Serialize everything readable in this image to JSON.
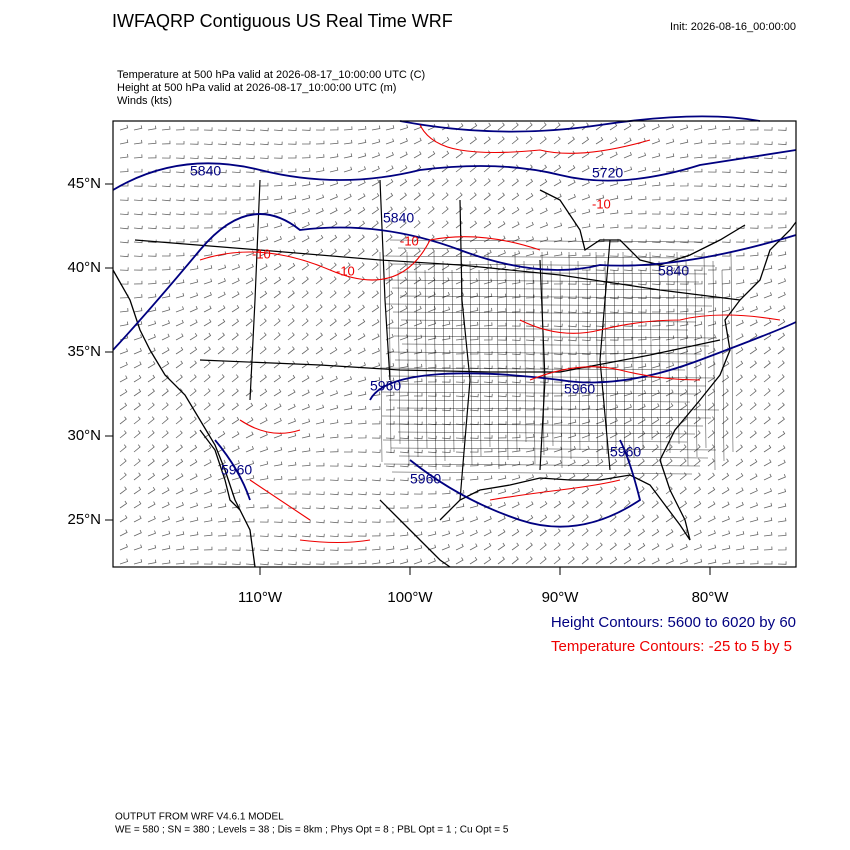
{
  "header": {
    "title": "IWFAQRP Contiguous US Real Time WRF",
    "init": "Init: 2026-08-16_00:00:00"
  },
  "subtitles": [
    "Temperature at 500 hPa valid at 2026-08-17_10:00:00 UTC   (C)",
    "Height at 500 hPa valid at 2026-08-17_10:00:00 UTC   (m)",
    "Winds   (kts)"
  ],
  "lat_labels": [
    "45°N",
    "40°N",
    "35°N",
    "30°N",
    "25°N"
  ],
  "lon_labels": [
    "110°W",
    "100°W",
    "90°W",
    "80°W"
  ],
  "height_contour_labels": [
    "5840",
    "5720",
    "5840",
    "5840",
    "5960",
    "5960",
    "5960",
    "5960",
    "5960"
  ],
  "temperature_contour_labels": [
    "-10",
    "-10",
    "-10",
    "-10"
  ],
  "legend": {
    "height": "Height Contours: 5600 to 6020 by 60",
    "temperature": "Temperature Contours: -25 to 5 by 5"
  },
  "footer": [
    "OUTPUT FROM WRF V4.6.1 MODEL",
    "WE = 580 ; SN = 380 ; Levels = 38 ; Dis = 8km ; Phys Opt = 8 ; PBL Opt = 1 ; Cu Opt = 5"
  ]
}
